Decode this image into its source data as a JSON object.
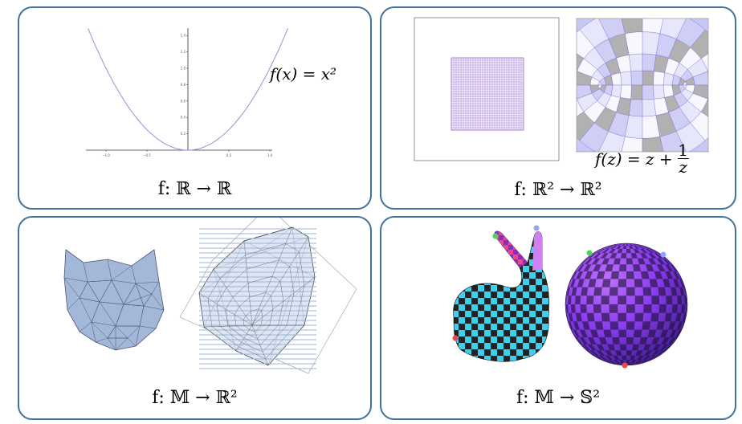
{
  "panels": [
    {
      "caption": "f: ℝ → ℝ",
      "equation": "f(x) = x²",
      "plot": {
        "x_ticks": [
          "−1.0",
          "−0.5",
          "0.5",
          "1.0"
        ],
        "y_ticks": [
          "0.2",
          "0.4",
          "0.6",
          "0.8",
          "1.0",
          "1.2",
          "1.4"
        ]
      }
    },
    {
      "caption": "f: ℝ² → ℝ²",
      "equation_lhs": "f(z) = z +",
      "equation_num": "1",
      "equation_den": "z"
    },
    {
      "caption": "f: 𝕄 → ℝ²"
    },
    {
      "caption": "f: 𝕄 → 𝕊²"
    }
  ],
  "colors": {
    "border": "#41719c",
    "curve": "#9b8fd6",
    "grid": "#8a5cc8",
    "mesh": "#a9b9d8",
    "checker_dark": "#222222",
    "checker_light": "#3fd0f0"
  },
  "icons": [
    "parabola-plot",
    "square-grid",
    "conformal-map",
    "cat-mesh",
    "flattened-mesh",
    "bunny-checker",
    "sphere-checker"
  ]
}
